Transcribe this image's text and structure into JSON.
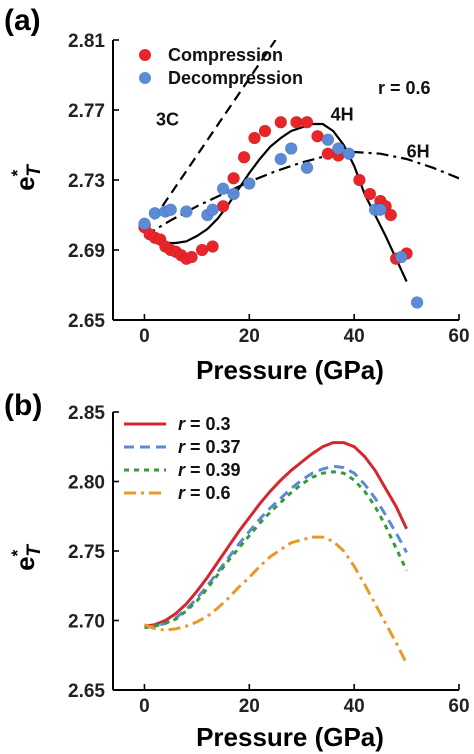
{
  "chart_data": [
    {
      "panel_label": "(a)",
      "type": "scatter",
      "xlabel": "Pressure (GPa)",
      "ylabel_main": "e",
      "ylabel_sup": "*",
      "ylabel_sub": "T",
      "xlim": [
        -6,
        60
      ],
      "ylim": [
        2.65,
        2.81
      ],
      "xticks": [
        0,
        20,
        40,
        60
      ],
      "yticks": [
        2.65,
        2.69,
        2.73,
        2.77,
        2.81
      ],
      "ytick_labels": [
        "2.65",
        "2.69",
        "2.73",
        "2.77",
        "2.81"
      ],
      "annotation_r": "r = 0.6",
      "colors": {
        "compression": "#e8262a",
        "decompression": "#5b8ad6"
      },
      "series": [
        {
          "name": "Compression",
          "kind": "points",
          "x": [
            0,
            1,
            2,
            3,
            4,
            5,
            6,
            7,
            8,
            9,
            11,
            13,
            15,
            17,
            19,
            21,
            23,
            26,
            29,
            31,
            33,
            35,
            37,
            41,
            43,
            45,
            46,
            47,
            48,
            50
          ],
          "y": [
            2.703,
            2.699,
            2.697,
            2.696,
            2.692,
            2.69,
            2.689,
            2.687,
            2.685,
            2.686,
            2.69,
            2.692,
            2.715,
            2.731,
            2.743,
            2.754,
            2.758,
            2.763,
            2.763,
            2.763,
            2.755,
            2.745,
            2.744,
            2.73,
            2.722,
            2.718,
            2.715,
            2.71,
            2.685,
            2.688
          ]
        },
        {
          "name": "Decompression",
          "kind": "points",
          "x": [
            0,
            2,
            4,
            5,
            8,
            12,
            13,
            15,
            17,
            20,
            26,
            28,
            31,
            35,
            37,
            39,
            44,
            45,
            49,
            52
          ],
          "y": [
            2.705,
            2.711,
            2.712,
            2.713,
            2.712,
            2.71,
            2.713,
            2.725,
            2.722,
            2.728,
            2.742,
            2.748,
            2.737,
            2.753,
            2.748,
            2.745,
            2.713,
            2.713,
            2.686,
            2.66
          ]
        },
        {
          "name": "4H",
          "kind": "line",
          "style": "solid",
          "x": [
            0,
            2,
            4,
            6,
            8,
            10,
            12,
            14,
            16,
            18,
            20,
            22,
            24,
            26,
            28,
            30,
            32,
            34,
            36,
            38,
            40,
            42,
            44,
            46,
            48,
            50
          ],
          "y": [
            2.698,
            2.695,
            2.694,
            2.694,
            2.695,
            2.698,
            2.702,
            2.708,
            2.716,
            2.725,
            2.734,
            2.742,
            2.749,
            2.754,
            2.758,
            2.76,
            2.762,
            2.762,
            2.758,
            2.75,
            2.738,
            2.722,
            2.71,
            2.698,
            2.685,
            2.672
          ]
        },
        {
          "name": "6H",
          "kind": "line",
          "style": "dashdot",
          "x": [
            0,
            5,
            10,
            15,
            20,
            25,
            30,
            35,
            40,
            45,
            50,
            55,
            60
          ],
          "y": [
            2.698,
            2.707,
            2.715,
            2.722,
            2.729,
            2.735,
            2.74,
            2.744,
            2.746,
            2.745,
            2.742,
            2.737,
            2.731
          ]
        },
        {
          "name": "3C",
          "kind": "line",
          "style": "dashed",
          "x": [
            0,
            5,
            10,
            15,
            20,
            25
          ],
          "y": [
            2.7,
            2.722,
            2.744,
            2.766,
            2.788,
            2.81
          ]
        }
      ],
      "line_labels": [
        {
          "text": "3C",
          "x": 2.2,
          "y": 2.761
        },
        {
          "text": "4H",
          "x": 35.5,
          "y": 2.764
        },
        {
          "text": "6H",
          "x": 50,
          "y": 2.743
        }
      ]
    },
    {
      "panel_label": "(b)",
      "type": "line",
      "xlabel": "Pressure (GPa)",
      "ylabel_main": "e",
      "ylabel_sup": "*",
      "ylabel_sub": "T",
      "xlim": [
        -6,
        60
      ],
      "ylim": [
        2.65,
        2.85
      ],
      "xticks": [
        0,
        20,
        40,
        60
      ],
      "yticks": [
        2.65,
        2.7,
        2.75,
        2.8,
        2.85
      ],
      "ytick_labels": [
        "2.65",
        "2.70",
        "2.75",
        "2.80",
        "2.85"
      ],
      "series": [
        {
          "name": "r = 0.3",
          "style": "solid",
          "color": "#d4282e",
          "x": [
            0,
            2,
            4,
            6,
            8,
            10,
            12,
            14,
            16,
            18,
            20,
            22,
            24,
            26,
            28,
            30,
            32,
            34,
            36,
            38,
            40,
            42,
            44,
            46,
            48,
            50
          ],
          "y": [
            2.696,
            2.697,
            2.7,
            2.705,
            2.712,
            2.721,
            2.731,
            2.742,
            2.753,
            2.764,
            2.774,
            2.784,
            2.793,
            2.801,
            2.808,
            2.814,
            2.82,
            2.825,
            2.828,
            2.828,
            2.825,
            2.818,
            2.808,
            2.795,
            2.782,
            2.766
          ]
        },
        {
          "name": "r = 0.37",
          "style": "dashed",
          "color": "#5b8ad6",
          "x": [
            0,
            2,
            4,
            6,
            8,
            10,
            12,
            14,
            16,
            18,
            20,
            22,
            24,
            26,
            28,
            30,
            32,
            34,
            36,
            38,
            40,
            42,
            44,
            46,
            48,
            50
          ],
          "y": [
            2.695,
            2.696,
            2.698,
            2.702,
            2.708,
            2.716,
            2.725,
            2.735,
            2.745,
            2.755,
            2.764,
            2.773,
            2.781,
            2.788,
            2.795,
            2.801,
            2.806,
            2.809,
            2.811,
            2.81,
            2.806,
            2.798,
            2.788,
            2.776,
            2.763,
            2.749
          ]
        },
        {
          "name": "r = 0.39",
          "style": "dotted",
          "color": "#3a9a3a",
          "x": [
            0,
            2,
            4,
            6,
            8,
            10,
            12,
            14,
            16,
            18,
            20,
            22,
            24,
            26,
            28,
            30,
            32,
            34,
            36,
            38,
            40,
            42,
            44,
            46,
            48,
            50
          ],
          "y": [
            2.695,
            2.696,
            2.698,
            2.701,
            2.707,
            2.714,
            2.723,
            2.733,
            2.743,
            2.752,
            2.761,
            2.77,
            2.778,
            2.785,
            2.792,
            2.798,
            2.803,
            2.806,
            2.807,
            2.806,
            2.801,
            2.793,
            2.782,
            2.768,
            2.752,
            2.736
          ]
        },
        {
          "name": "r = 0.6",
          "style": "dashdot",
          "color": "#e79a2a",
          "x": [
            0,
            2,
            4,
            6,
            8,
            10,
            12,
            14,
            16,
            18,
            20,
            22,
            24,
            26,
            28,
            30,
            32,
            34,
            36,
            38,
            40,
            42,
            44,
            46,
            48,
            50
          ],
          "y": [
            2.697,
            2.694,
            2.693,
            2.694,
            2.696,
            2.699,
            2.703,
            2.709,
            2.716,
            2.724,
            2.731,
            2.739,
            2.746,
            2.751,
            2.756,
            2.758,
            2.76,
            2.76,
            2.757,
            2.75,
            2.739,
            2.726,
            2.712,
            2.698,
            2.684,
            2.669
          ]
        }
      ]
    }
  ]
}
